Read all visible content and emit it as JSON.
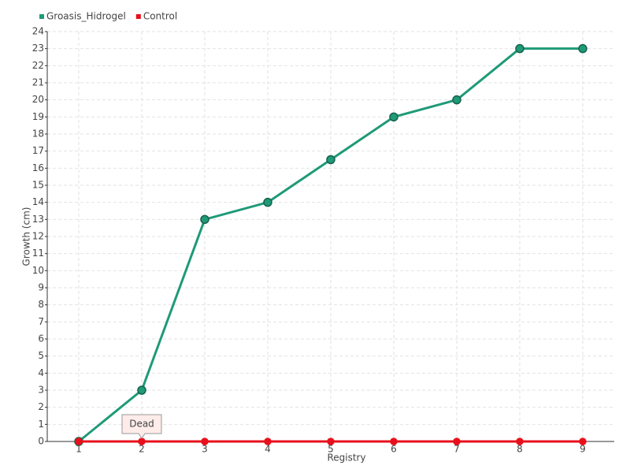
{
  "chart_data": {
    "type": "line",
    "categories": [
      "1",
      "2",
      "3",
      "4",
      "5",
      "6",
      "7",
      "8",
      "9"
    ],
    "x_label": "Registry",
    "y_label": "Growth (cm)",
    "series": [
      {
        "name": "Groasis_Hidrogel",
        "color": "#1f9a77",
        "values": [
          0,
          3,
          13,
          14,
          16.5,
          19,
          20,
          23,
          23
        ]
      },
      {
        "name": "Control",
        "color": "#e8101c",
        "values": [
          0,
          0,
          0,
          0,
          0,
          0,
          0,
          0,
          0
        ]
      }
    ],
    "annotations": [
      "Dead"
    ],
    "ylim": [
      0,
      24
    ],
    "yticks": [
      0,
      1,
      2,
      3,
      4,
      5,
      6,
      7,
      8,
      9,
      10,
      11,
      12,
      13,
      14,
      15,
      16,
      17,
      18,
      19,
      20,
      21,
      22,
      23,
      24
    ],
    "grid": true,
    "legend": "top-left"
  }
}
